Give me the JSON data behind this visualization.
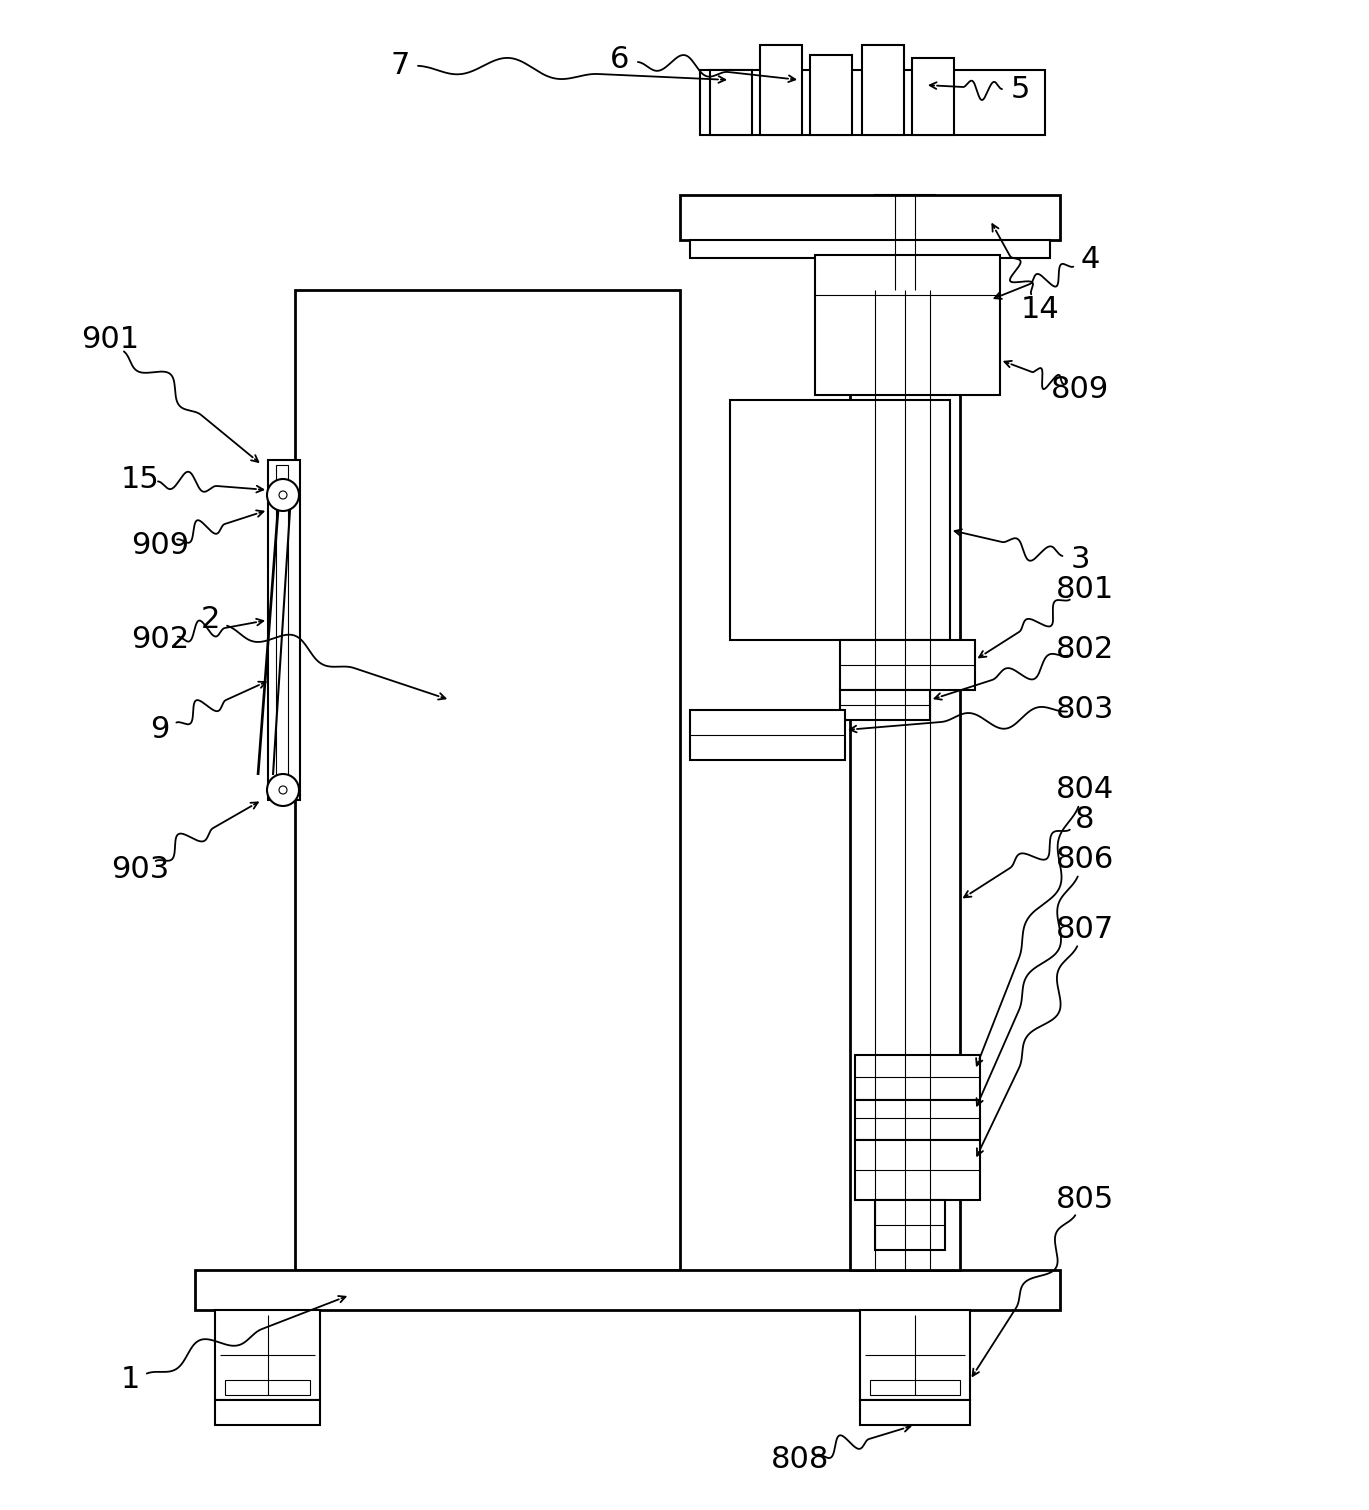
{
  "bg_color": "#ffffff",
  "lw": 1.5,
  "lw_thin": 0.8,
  "fig_w": 13.69,
  "fig_h": 15.1,
  "dpi": 100
}
